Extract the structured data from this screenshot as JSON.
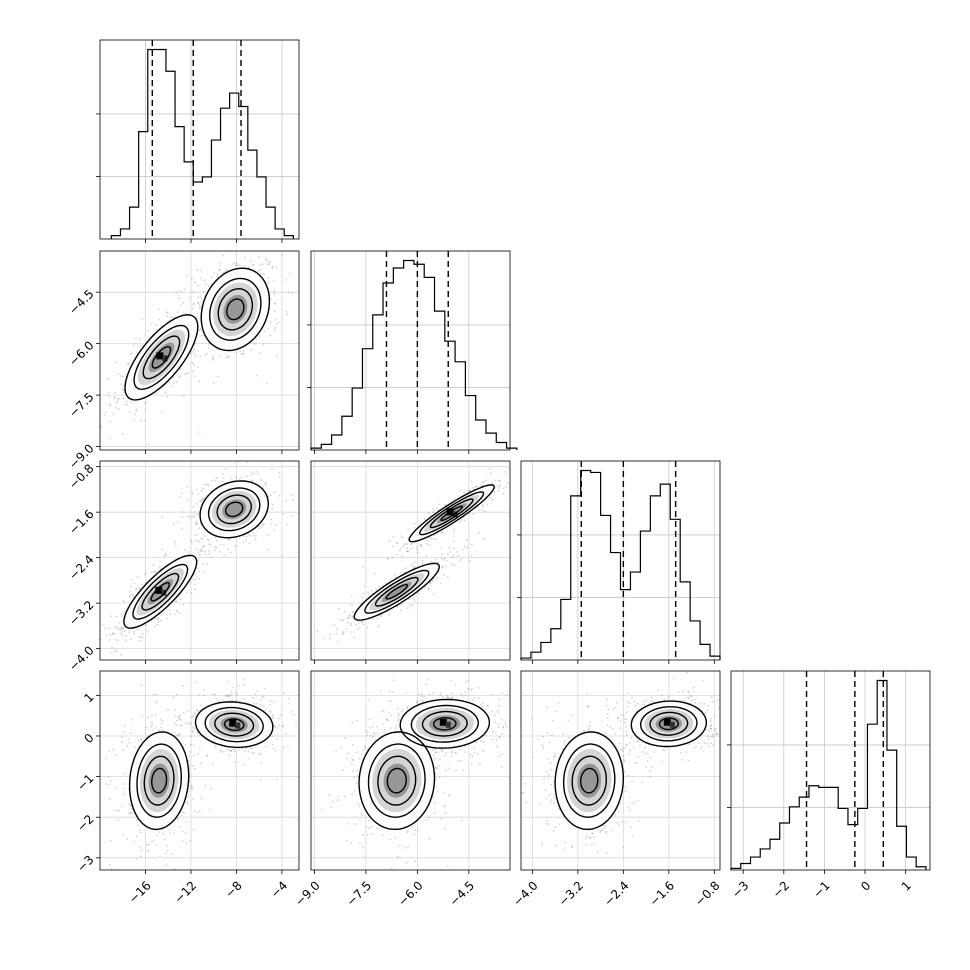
{
  "chart_data": {
    "type": "corner",
    "parameters": [
      {
        "key": "p0",
        "range": [
          -20,
          -2.5
        ],
        "ticks": [
          -16,
          -12,
          -8,
          -4
        ],
        "tick_labels": [
          "−16",
          "−12",
          "−8",
          "−4"
        ]
      },
      {
        "key": "p1",
        "range": [
          -9.1,
          -3.3
        ],
        "ticks": [
          -9.0,
          -7.5,
          -6.0,
          -4.5
        ],
        "tick_labels": [
          "−9.0",
          "−7.5",
          "−6.0",
          "−4.5"
        ]
      },
      {
        "key": "p2",
        "range": [
          -4.2,
          -0.7
        ],
        "ticks": [
          -4.0,
          -3.2,
          -2.4,
          -1.6,
          -0.8
        ],
        "tick_labels": [
          "−4.0",
          "−3.2",
          "−2.4",
          "−1.6",
          "−0.8"
        ]
      },
      {
        "key": "p3",
        "range": [
          -3.3,
          1.6
        ],
        "ticks": [
          -3,
          -2,
          -1,
          0,
          1
        ],
        "tick_labels": [
          "−3",
          "−2",
          "−1",
          "0",
          "1"
        ]
      }
    ],
    "histograms": [
      {
        "bins": [
          -19.0,
          -18.2,
          -17.4,
          -16.6,
          -15.8,
          -15.0,
          -14.2,
          -13.4,
          -12.6,
          -11.8,
          -11.0,
          -10.2,
          -9.4,
          -8.6,
          -7.8,
          -7.0,
          -6.2,
          -5.4,
          -4.6,
          -3.8,
          -3.0
        ],
        "counts": [
          2,
          6,
          19,
          64,
          113,
          113,
          100,
          67,
          46,
          34,
          37,
          59,
          78,
          87,
          79,
          53,
          37,
          19,
          6,
          2
        ],
        "quantiles": [
          -15.4,
          -11.8,
          -7.6
        ]
      },
      {
        "bins": [
          -9.1,
          -8.8,
          -8.5,
          -8.2,
          -7.9,
          -7.6,
          -7.3,
          -7.0,
          -6.7,
          -6.4,
          -6.1,
          -5.8,
          -5.5,
          -5.2,
          -4.9,
          -4.6,
          -4.3,
          -4.0,
          -3.7,
          -3.4,
          -3.1
        ],
        "counts": [
          1,
          3,
          8,
          18,
          33,
          54,
          72,
          89,
          97,
          101,
          99,
          92,
          74,
          58,
          47,
          29,
          16,
          9,
          4,
          1
        ],
        "quantiles": [
          -6.9,
          -6.0,
          -5.1
        ]
      },
      {
        "bins": [
          -4.2,
          -4.025,
          -3.85,
          -3.675,
          -3.5,
          -3.325,
          -3.15,
          -2.975,
          -2.8,
          -2.625,
          -2.45,
          -2.275,
          -2.1,
          -1.925,
          -1.75,
          -1.575,
          -1.4,
          -1.225,
          -1.05,
          -0.875,
          -0.7
        ],
        "counts": [
          1,
          4,
          9,
          16,
          31,
          84,
          97,
          96,
          74,
          55,
          36,
          45,
          66,
          84,
          90,
          72,
          40,
          20,
          8,
          2
        ],
        "quantiles": [
          -3.14,
          -2.4,
          -1.48
        ]
      },
      {
        "bins": [
          -3.3,
          -3.06,
          -2.82,
          -2.58,
          -2.34,
          -2.1,
          -1.86,
          -1.62,
          -1.38,
          -1.14,
          -0.9,
          -0.66,
          -0.42,
          -0.18,
          0.06,
          0.3,
          0.54,
          0.78,
          1.02,
          1.26,
          1.5
        ],
        "counts": [
          1,
          4,
          8,
          13,
          19,
          29,
          39,
          45,
          52,
          51,
          51,
          38,
          28,
          38,
          90,
          117,
          74,
          27,
          8,
          2
        ],
        "quantiles": [
          -1.44,
          -0.25,
          0.45
        ]
      }
    ],
    "pairs": [
      {
        "x": 0,
        "y": 1,
        "modes": [
          {
            "cx": -14.6,
            "cy": -6.4,
            "sx": 1.6,
            "sy": 0.62,
            "rho": 0.72,
            "w": 0.5,
            "peak": true
          },
          {
            "cx": -8.1,
            "cy": -5.0,
            "sx": 1.5,
            "sy": 0.6,
            "rho": 0.2,
            "w": 0.5,
            "peak": false
          }
        ]
      },
      {
        "x": 0,
        "y": 2,
        "modes": [
          {
            "cx": -14.7,
            "cy": -3.0,
            "sx": 1.6,
            "sy": 0.32,
            "rho": 0.82,
            "w": 0.5,
            "peak": true
          },
          {
            "cx": -8.2,
            "cy": -1.55,
            "sx": 1.5,
            "sy": 0.25,
            "rho": 0.2,
            "w": 0.5,
            "peak": false
          }
        ]
      },
      {
        "x": 1,
        "y": 2,
        "modes": [
          {
            "cx": -5.0,
            "cy": -1.62,
            "sx": 0.62,
            "sy": 0.25,
            "rho": 0.93,
            "w": 0.5,
            "peak": true
          },
          {
            "cx": -6.6,
            "cy": -3.0,
            "sx": 0.62,
            "sy": 0.25,
            "rho": 0.88,
            "w": 0.5,
            "peak": false
          }
        ]
      },
      {
        "x": 0,
        "y": 3,
        "modes": [
          {
            "cx": -14.8,
            "cy": -1.1,
            "sx": 1.3,
            "sy": 0.6,
            "rho": 0.1,
            "w": 0.5,
            "peak": false
          },
          {
            "cx": -8.2,
            "cy": 0.28,
            "sx": 1.7,
            "sy": 0.28,
            "rho": -0.1,
            "w": 0.5,
            "peak": true
          }
        ]
      },
      {
        "x": 1,
        "y": 3,
        "modes": [
          {
            "cx": -6.6,
            "cy": -1.1,
            "sx": 0.55,
            "sy": 0.6,
            "rho": 0.05,
            "w": 0.5,
            "peak": false
          },
          {
            "cx": -5.2,
            "cy": 0.3,
            "sx": 0.65,
            "sy": 0.3,
            "rho": 0.05,
            "w": 0.5,
            "peak": true
          }
        ]
      },
      {
        "x": 2,
        "y": 3,
        "modes": [
          {
            "cx": -3.0,
            "cy": -1.1,
            "sx": 0.3,
            "sy": 0.6,
            "rho": 0.05,
            "w": 0.5,
            "peak": false
          },
          {
            "cx": -1.6,
            "cy": 0.3,
            "sx": 0.33,
            "sy": 0.28,
            "rho": 0.05,
            "w": 0.5,
            "peak": true
          }
        ]
      }
    ],
    "grid": true,
    "hist_line_color": "#000000",
    "point_color": "#808080",
    "density_cmap": [
      "#ffffff",
      "#e0e0e0",
      "#b0b0b0",
      "#808080",
      "#404040",
      "#000000"
    ]
  }
}
